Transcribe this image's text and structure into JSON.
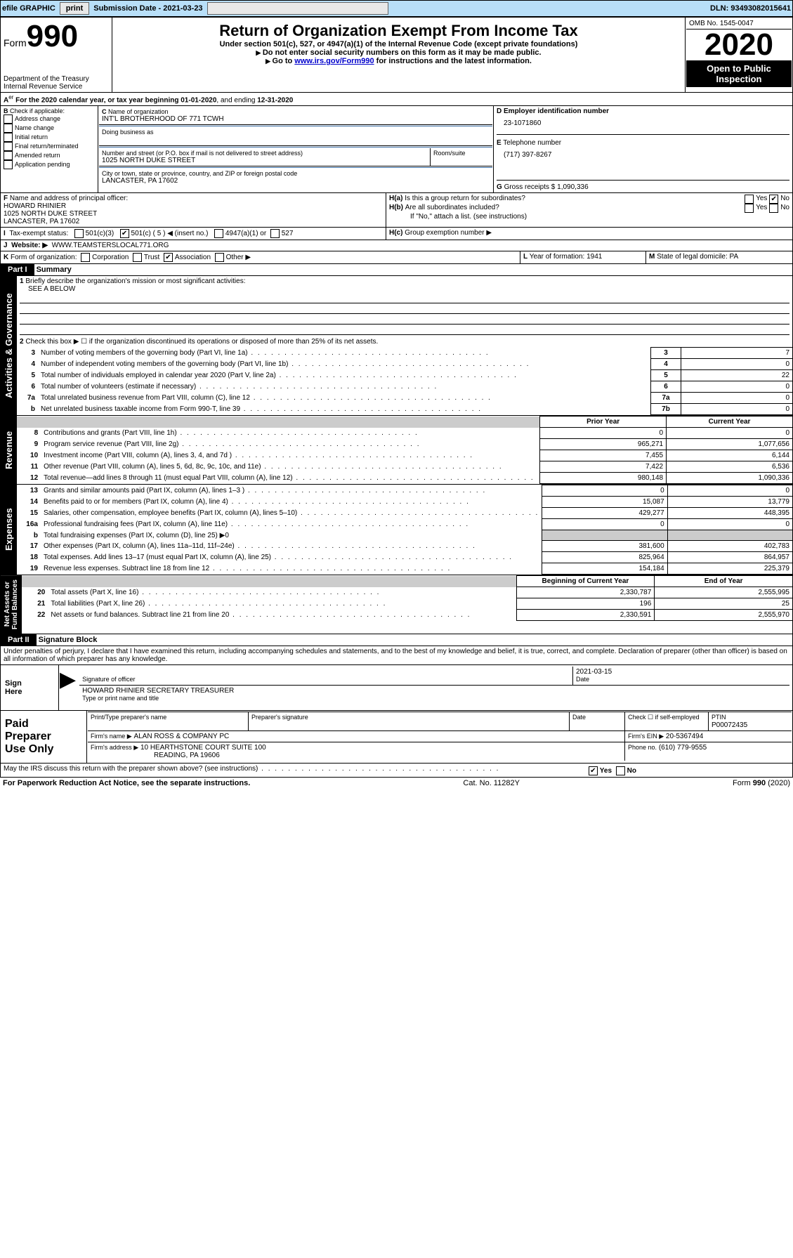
{
  "topbar": {
    "efile": "efile GRAPHIC",
    "print": "print",
    "sub_lbl": "Submission Date - ",
    "sub_date": "2021-03-23",
    "dln_lbl": "DLN: ",
    "dln": "93493082015641"
  },
  "hdr": {
    "form_word": "Form",
    "form_num": "990",
    "title": "Return of Organization Exempt From Income Tax",
    "sub1": "Under section 501(c), 527, or 4947(a)(1) of the Internal Revenue Code (except private foundations)",
    "sub2": "Do not enter social security numbers on this form as it may be made public.",
    "sub3_a": "Go to ",
    "sub3_link": "www.irs.gov/Form990",
    "sub3_b": " for instructions and the latest information.",
    "dept": "Department of the Treasury\nInternal Revenue Service",
    "omb": "OMB No. 1545-0047",
    "year": "2020",
    "open": "Open to Public\nInspection"
  },
  "A": {
    "text_a": "For the 2020 calendar year, or tax year beginning ",
    "begin": "01-01-2020",
    "text_b": ", and ending ",
    "end": "12-31-2020"
  },
  "B": {
    "hdr": "Check if applicable:",
    "items": [
      "Address change",
      "Name change",
      "Initial return",
      "Final return/terminated",
      "Amended return",
      "Application pending"
    ]
  },
  "C": {
    "name_lbl": "Name of organization",
    "name": "INT'L BROTHERHOOD OF 771 TCWH",
    "dba_lbl": "Doing business as",
    "addr_lbl": "Number and street (or P.O. box if mail is not delivered to street address)",
    "room_lbl": "Room/suite",
    "addr": "1025 NORTH DUKE STREET",
    "city_lbl": "City or town, state or province, country, and ZIP or foreign postal code",
    "city": "LANCASTER, PA  17602"
  },
  "D": {
    "lbl": "Employer identification number",
    "val": "23-1071860"
  },
  "E": {
    "lbl": "Telephone number",
    "val": "(717) 397-8267"
  },
  "G": {
    "lbl": "Gross receipts $",
    "val": "1,090,336"
  },
  "F": {
    "lbl": "Name and address of principal officer:",
    "name": "HOWARD RHINIER",
    "addr": "1025 NORTH DUKE STREET",
    "city": "LANCASTER, PA  17602"
  },
  "H": {
    "a": "Is this a group return for subordinates?",
    "b": "Are all subordinates included?",
    "b2": "If \"No,\" attach a list. (see instructions)",
    "c": "Group exemption number ▶",
    "yes": "Yes",
    "no": "No"
  },
  "I": {
    "lbl": "Tax-exempt status:",
    "o1": "501(c)(3)",
    "o2": "501(c) ( 5 ) ◀ (insert no.)",
    "o3": "4947(a)(1) or",
    "o4": "527"
  },
  "J": {
    "lbl": "Website: ▶",
    "val": "WWW.TEAMSTERSLOCAL771.ORG"
  },
  "K": {
    "lbl": "Form of organization:",
    "o1": "Corporation",
    "o2": "Trust",
    "o3": "Association",
    "o4": "Other ▶"
  },
  "L": {
    "lbl": "Year of formation:",
    "val": "1941"
  },
  "M": {
    "lbl": "State of legal domicile:",
    "val": "PA"
  },
  "part1": {
    "tab": "Part I",
    "title": "Summary",
    "vlabel": "Activities & Governance"
  },
  "p1": {
    "l1": "Briefly describe the organization's mission or most significant activities:",
    "l1v": "SEE A BELOW",
    "l2": "Check this box ▶ ☐  if the organization discontinued its operations or disposed of more than 25% of its net assets.",
    "l3": "Number of voting members of the governing body (Part VI, line 1a)",
    "l3n": "3",
    "l3v": "7",
    "l4": "Number of independent voting members of the governing body (Part VI, line 1b)",
    "l4n": "4",
    "l4v": "0",
    "l5": "Total number of individuals employed in calendar year 2020 (Part V, line 2a)",
    "l5n": "5",
    "l5v": "22",
    "l6": "Total number of volunteers (estimate if necessary)",
    "l6n": "6",
    "l6v": "0",
    "l7a": "Total unrelated business revenue from Part VIII, column (C), line 12",
    "l7an": "7a",
    "l7av": "0",
    "l7b": "Net unrelated business taxable income from Form 990-T, line 39",
    "l7bn": "7b",
    "l7bv": "0"
  },
  "rev": {
    "vlabel": "Revenue",
    "prior": "Prior Year",
    "curr": "Current Year",
    "r": [
      {
        "n": "8",
        "t": "Contributions and grants (Part VIII, line 1h)",
        "p": "0",
        "c": "0"
      },
      {
        "n": "9",
        "t": "Program service revenue (Part VIII, line 2g)",
        "p": "965,271",
        "c": "1,077,656"
      },
      {
        "n": "10",
        "t": "Investment income (Part VIII, column (A), lines 3, 4, and 7d )",
        "p": "7,455",
        "c": "6,144"
      },
      {
        "n": "11",
        "t": "Other revenue (Part VIII, column (A), lines 5, 6d, 8c, 9c, 10c, and 11e)",
        "p": "7,422",
        "c": "6,536"
      },
      {
        "n": "12",
        "t": "Total revenue—add lines 8 through 11 (must equal Part VIII, column (A), line 12)",
        "p": "980,148",
        "c": "1,090,336"
      }
    ]
  },
  "exp": {
    "vlabel": "Expenses",
    "r": [
      {
        "n": "13",
        "t": "Grants and similar amounts paid (Part IX, column (A), lines 1–3 )",
        "p": "0",
        "c": "0"
      },
      {
        "n": "14",
        "t": "Benefits paid to or for members (Part IX, column (A), line 4)",
        "p": "15,087",
        "c": "13,779"
      },
      {
        "n": "15",
        "t": "Salaries, other compensation, employee benefits (Part IX, column (A), lines 5–10)",
        "p": "429,277",
        "c": "448,395"
      },
      {
        "n": "16a",
        "t": "Professional fundraising fees (Part IX, column (A), line 11e)",
        "p": "0",
        "c": "0"
      },
      {
        "n": "b",
        "t": "Total fundraising expenses (Part IX, column (D), line 25) ▶0",
        "p": "",
        "c": "",
        "grey": true
      },
      {
        "n": "17",
        "t": "Other expenses (Part IX, column (A), lines 11a–11d, 11f–24e)",
        "p": "381,600",
        "c": "402,783"
      },
      {
        "n": "18",
        "t": "Total expenses. Add lines 13–17 (must equal Part IX, column (A), line 25)",
        "p": "825,964",
        "c": "864,957"
      },
      {
        "n": "19",
        "t": "Revenue less expenses. Subtract line 18 from line 12",
        "p": "154,184",
        "c": "225,379"
      }
    ]
  },
  "na": {
    "vlabel": "Net Assets or\nFund Balances",
    "begin": "Beginning of Current Year",
    "end": "End of Year",
    "r": [
      {
        "n": "20",
        "t": "Total assets (Part X, line 16)",
        "p": "2,330,787",
        "c": "2,555,995"
      },
      {
        "n": "21",
        "t": "Total liabilities (Part X, line 26)",
        "p": "196",
        "c": "25"
      },
      {
        "n": "22",
        "t": "Net assets or fund balances. Subtract line 21 from line 20",
        "p": "2,330,591",
        "c": "2,555,970"
      }
    ]
  },
  "part2": {
    "tab": "Part II",
    "title": "Signature Block",
    "perjury": "Under penalties of perjury, I declare that I have examined this return, including accompanying schedules and statements, and to the best of my knowledge and belief, it is true, correct, and complete. Declaration of preparer (other than officer) is based on all information of which preparer has any knowledge."
  },
  "sign": {
    "here": "Sign\nHere",
    "sig_lbl": "Signature of officer",
    "date_lbl": "Date",
    "date": "2021-03-15",
    "name": "HOWARD RHINIER SECRETARY TREASURER",
    "name_lbl": "Type or print name and title"
  },
  "prep": {
    "here": "Paid\nPreparer\nUse Only",
    "name_lbl": "Print/Type preparer's name",
    "sig_lbl": "Preparer's signature",
    "date_lbl": "Date",
    "self": "Check ☐ if self-employed",
    "ptin_lbl": "PTIN",
    "ptin": "P00072435",
    "firm_lbl": "Firm's name    ▶",
    "firm": "ALAN ROSS & COMPANY PC",
    "ein_lbl": "Firm's EIN ▶",
    "ein": "20-5367494",
    "addr_lbl": "Firm's address ▶",
    "addr": "10 HEARTHSTONE COURT SUITE 100",
    "city": "READING, PA  19606",
    "phone_lbl": "Phone no.",
    "phone": "(610) 779-9555"
  },
  "discuss": {
    "q": "May the IRS discuss this return with the preparer shown above? (see instructions)",
    "yes": "Yes",
    "no": "No"
  },
  "foot": {
    "pra": "For Paperwork Reduction Act Notice, see the separate instructions.",
    "cat": "Cat. No. 11282Y",
    "form": "Form 990 (2020)"
  }
}
